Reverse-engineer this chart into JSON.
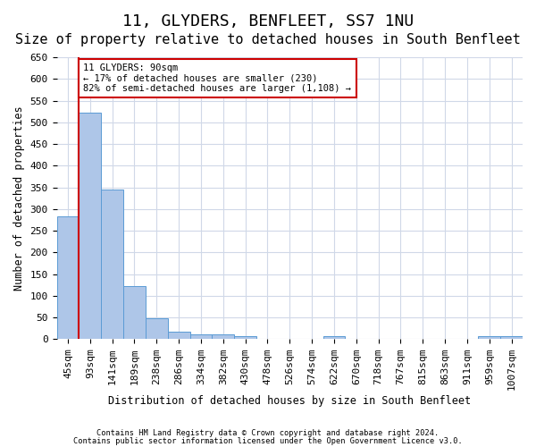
{
  "title": "11, GLYDERS, BENFLEET, SS7 1NU",
  "subtitle": "Size of property relative to detached houses in South Benfleet",
  "xlabel": "Distribution of detached houses by size in South Benfleet",
  "ylabel": "Number of detached properties",
  "footer_line1": "Contains HM Land Registry data © Crown copyright and database right 2024.",
  "footer_line2": "Contains public sector information licensed under the Open Government Licence v3.0.",
  "bin_labels": [
    "45sqm",
    "93sqm",
    "141sqm",
    "189sqm",
    "238sqm",
    "286sqm",
    "334sqm",
    "382sqm",
    "430sqm",
    "478sqm",
    "526sqm",
    "574sqm",
    "622sqm",
    "670sqm",
    "718sqm",
    "767sqm",
    "815sqm",
    "863sqm",
    "911sqm",
    "959sqm",
    "1007sqm"
  ],
  "bar_values": [
    283,
    522,
    346,
    122,
    49,
    17,
    11,
    11,
    7,
    0,
    0,
    0,
    7,
    0,
    0,
    0,
    0,
    0,
    0,
    7,
    7
  ],
  "bar_color": "#aec6e8",
  "bar_edge_color": "#5b9bd5",
  "grid_color": "#d0d8e8",
  "annotation_text": "11 GLYDERS: 90sqm\n← 17% of detached houses are smaller (230)\n82% of semi-detached houses are larger (1,108) →",
  "annotation_box_color": "#ffffff",
  "annotation_box_edge_color": "#cc0000",
  "vline_color": "#cc0000",
  "vline_x_index": 1,
  "ylim": [
    0,
    650
  ],
  "yticks": [
    0,
    50,
    100,
    150,
    200,
    250,
    300,
    350,
    400,
    450,
    500,
    550,
    600,
    650
  ],
  "background_color": "#ffffff",
  "title_fontsize": 13,
  "subtitle_fontsize": 11,
  "axis_fontsize": 8.5,
  "tick_fontsize": 8
}
